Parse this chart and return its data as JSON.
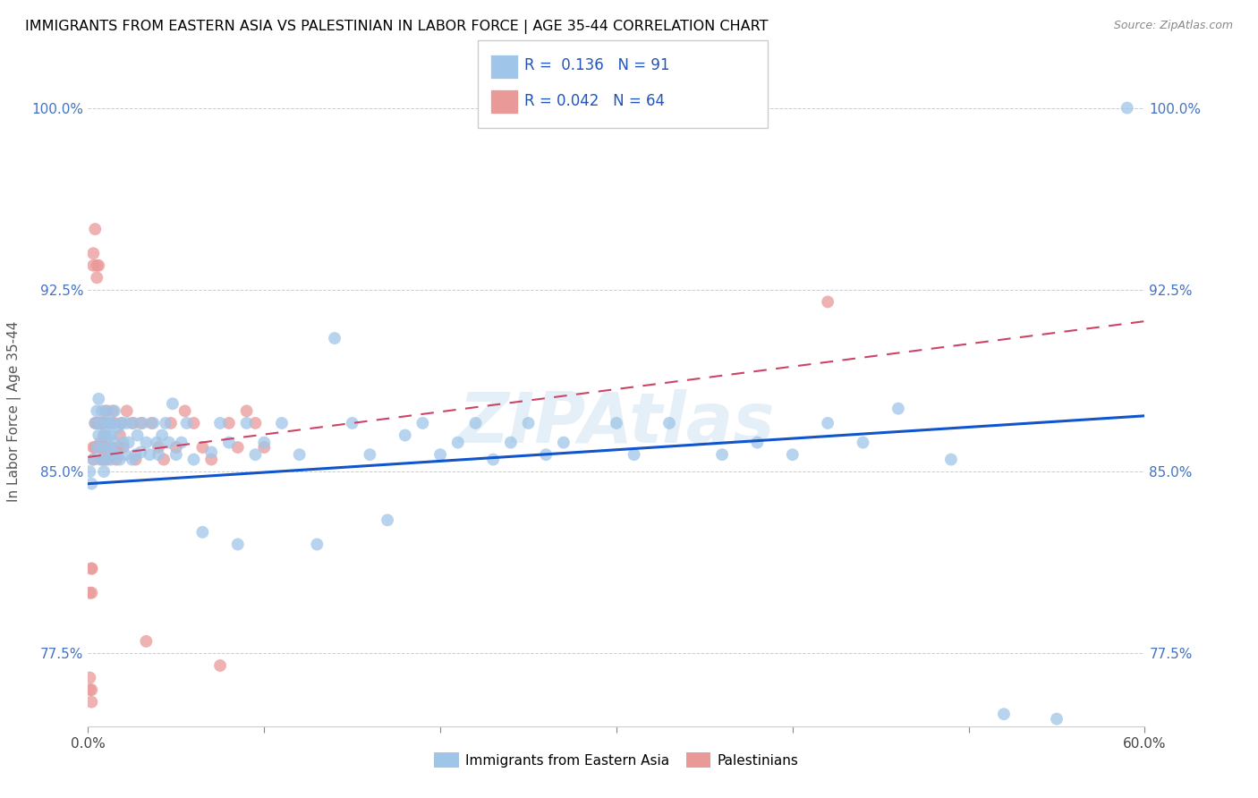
{
  "title": "IMMIGRANTS FROM EASTERN ASIA VS PALESTINIAN IN LABOR FORCE | AGE 35-44 CORRELATION CHART",
  "source": "Source: ZipAtlas.com",
  "ylabel": "In Labor Force | Age 35-44",
  "xlim": [
    0.0,
    0.6
  ],
  "ylim": [
    0.745,
    1.005
  ],
  "xticks": [
    0.0,
    0.1,
    0.2,
    0.3,
    0.4,
    0.5,
    0.6
  ],
  "xticklabels": [
    "0.0%",
    "",
    "",
    "",
    "",
    "",
    "60.0%"
  ],
  "yticks": [
    0.775,
    0.85,
    0.925,
    1.0
  ],
  "yticklabels": [
    "77.5%",
    "85.0%",
    "92.5%",
    "100.0%"
  ],
  "blue_color": "#9fc5e8",
  "pink_color": "#ea9999",
  "trend_blue": "#1155cc",
  "trend_pink": "#cc4466",
  "legend_R1": "R =  0.136",
  "legend_N1": "N = 91",
  "legend_R2": "R = 0.042",
  "legend_N2": "N = 64",
  "label1": "Immigrants from Eastern Asia",
  "label2": "Palestinians",
  "watermark": "ZIPAtlas",
  "blue_x": [
    0.001,
    0.002,
    0.003,
    0.004,
    0.005,
    0.005,
    0.006,
    0.006,
    0.007,
    0.007,
    0.008,
    0.008,
    0.009,
    0.009,
    0.01,
    0.01,
    0.011,
    0.011,
    0.012,
    0.012,
    0.013,
    0.013,
    0.014,
    0.014,
    0.015,
    0.015,
    0.016,
    0.017,
    0.018,
    0.019,
    0.02,
    0.021,
    0.022,
    0.023,
    0.025,
    0.026,
    0.027,
    0.028,
    0.03,
    0.031,
    0.033,
    0.035,
    0.037,
    0.039,
    0.04,
    0.042,
    0.044,
    0.046,
    0.048,
    0.05,
    0.053,
    0.056,
    0.06,
    0.065,
    0.07,
    0.075,
    0.08,
    0.085,
    0.09,
    0.095,
    0.1,
    0.11,
    0.12,
    0.13,
    0.14,
    0.15,
    0.16,
    0.17,
    0.18,
    0.19,
    0.2,
    0.21,
    0.22,
    0.23,
    0.24,
    0.25,
    0.26,
    0.27,
    0.3,
    0.31,
    0.33,
    0.36,
    0.38,
    0.4,
    0.42,
    0.44,
    0.46,
    0.49,
    0.52,
    0.55,
    0.59
  ],
  "blue_y": [
    0.85,
    0.845,
    0.855,
    0.87,
    0.86,
    0.875,
    0.865,
    0.88,
    0.855,
    0.87,
    0.86,
    0.875,
    0.865,
    0.85,
    0.87,
    0.855,
    0.865,
    0.875,
    0.86,
    0.87,
    0.855,
    0.865,
    0.87,
    0.858,
    0.862,
    0.875,
    0.857,
    0.868,
    0.855,
    0.87,
    0.862,
    0.857,
    0.87,
    0.862,
    0.855,
    0.87,
    0.857,
    0.865,
    0.858,
    0.87,
    0.862,
    0.857,
    0.87,
    0.862,
    0.857,
    0.865,
    0.87,
    0.862,
    0.878,
    0.857,
    0.862,
    0.87,
    0.855,
    0.825,
    0.858,
    0.87,
    0.862,
    0.82,
    0.87,
    0.857,
    0.862,
    0.87,
    0.857,
    0.82,
    0.905,
    0.87,
    0.857,
    0.83,
    0.865,
    0.87,
    0.857,
    0.862,
    0.87,
    0.855,
    0.862,
    0.87,
    0.857,
    0.862,
    0.87,
    0.857,
    0.87,
    0.857,
    0.862,
    0.857,
    0.87,
    0.862,
    0.876,
    0.855,
    0.75,
    0.748,
    1.0
  ],
  "pink_x": [
    0.001,
    0.001,
    0.001,
    0.002,
    0.002,
    0.002,
    0.002,
    0.002,
    0.003,
    0.003,
    0.003,
    0.003,
    0.004,
    0.004,
    0.004,
    0.005,
    0.005,
    0.005,
    0.006,
    0.006,
    0.006,
    0.007,
    0.007,
    0.007,
    0.008,
    0.008,
    0.008,
    0.009,
    0.009,
    0.009,
    0.01,
    0.01,
    0.011,
    0.011,
    0.012,
    0.013,
    0.014,
    0.015,
    0.016,
    0.017,
    0.018,
    0.019,
    0.02,
    0.022,
    0.025,
    0.027,
    0.03,
    0.033,
    0.036,
    0.04,
    0.043,
    0.047,
    0.05,
    0.055,
    0.06,
    0.065,
    0.07,
    0.075,
    0.08,
    0.085,
    0.09,
    0.095,
    0.1,
    0.42
  ],
  "pink_y": [
    0.76,
    0.8,
    0.765,
    0.755,
    0.81,
    0.8,
    0.81,
    0.76,
    0.94,
    0.935,
    0.86,
    0.855,
    0.95,
    0.87,
    0.86,
    0.935,
    0.93,
    0.87,
    0.935,
    0.87,
    0.86,
    0.87,
    0.862,
    0.86,
    0.86,
    0.855,
    0.87,
    0.865,
    0.855,
    0.87,
    0.86,
    0.875,
    0.855,
    0.86,
    0.87,
    0.86,
    0.875,
    0.87,
    0.855,
    0.86,
    0.865,
    0.87,
    0.86,
    0.875,
    0.87,
    0.855,
    0.87,
    0.78,
    0.87,
    0.86,
    0.855,
    0.87,
    0.86,
    0.875,
    0.87,
    0.86,
    0.855,
    0.77,
    0.87,
    0.86,
    0.875,
    0.87,
    0.86,
    0.92
  ],
  "blue_trend_x": [
    0.0,
    0.6
  ],
  "blue_trend_y": [
    0.845,
    0.873
  ],
  "pink_trend_x": [
    0.0,
    0.6
  ],
  "pink_trend_y": [
    0.856,
    0.912
  ]
}
